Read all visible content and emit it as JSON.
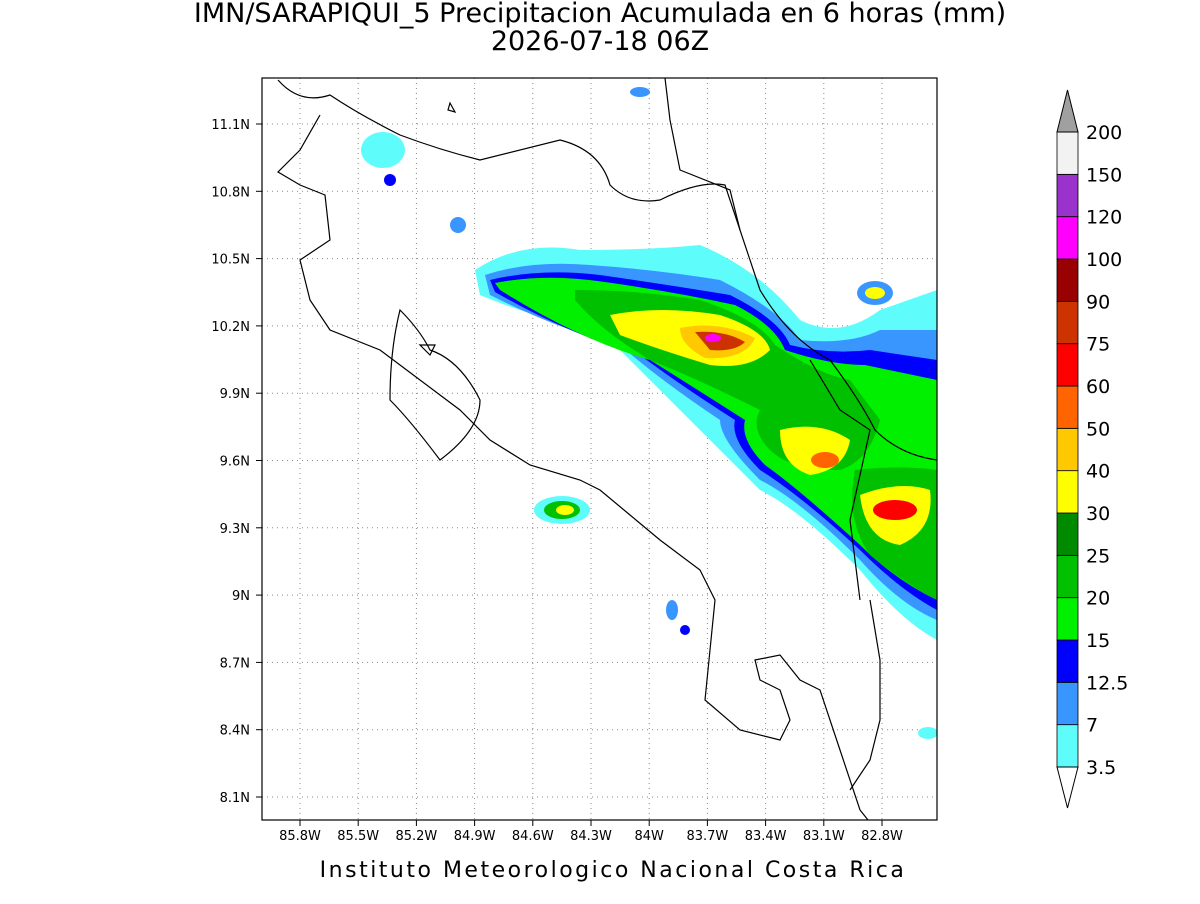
{
  "map": {
    "title": "IMN/SARAPIQUI_5 Precipitacion Acumulada en 6 horas (mm)",
    "subtitle": "2026-07-18 06Z",
    "lon_ticks": [
      "85.8W",
      "85.5W",
      "85.2W",
      "84.9W",
      "84.6W",
      "84.3W",
      "84W",
      "83.7W",
      "83.4W",
      "83.1W",
      "82.8W"
    ],
    "lat_ticks": [
      "11.1N",
      "10.8N",
      "10.5N",
      "10.2N",
      "9.9N",
      "9.6N",
      "9.3N",
      "9N",
      "8.7N",
      "8.4N",
      "8.1N"
    ],
    "colorbar": {
      "levels": [
        3.5,
        7,
        12.5,
        15,
        20,
        25,
        30,
        40,
        50,
        60,
        75,
        90,
        100,
        120,
        150,
        200
      ],
      "colors": [
        "#5ffcfc",
        "#3a96ff",
        "#0000ff",
        "#00f000",
        "#00c000",
        "#008a00",
        "#ffff00",
        "#ffc800",
        "#ff6400",
        "#ff0000",
        "#cc3300",
        "#990000",
        "#ff00ff",
        "#9933cc",
        "#f2f2f2"
      ],
      "under_color": "#ffffff",
      "over_color": "#a0a0a0"
    },
    "credit": "Instituto Meteorologico Nacional Costa Rica"
  }
}
